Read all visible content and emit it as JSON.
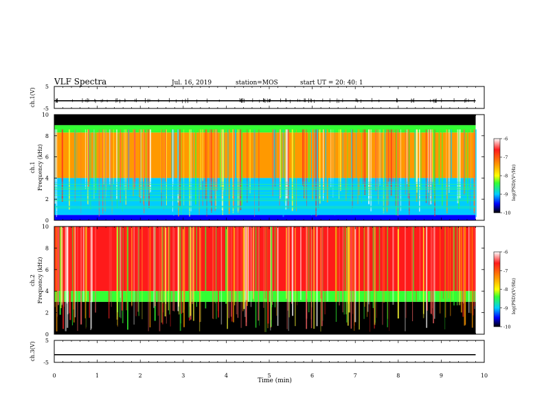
{
  "header": {
    "title": "VLF Spectra",
    "date": "Jul. 16, 2019",
    "station": "station=MOS",
    "start": "start UT =  20: 40: 1"
  },
  "colorbar": {
    "label": "log(PSD)(V²/Hz)",
    "ticks": [
      "-6",
      "-7",
      "-8",
      "-9",
      "-10"
    ],
    "colors": [
      "#ffffff",
      "#ff1a1a",
      "#ff9900",
      "#ffff00",
      "#33ff33",
      "#00ccff",
      "#0000ff",
      "#000000"
    ]
  },
  "chart_data": [
    {
      "type": "line",
      "ylabel": "ch.1(V)",
      "ylim": [
        -5,
        5
      ],
      "yticks": [
        "5",
        "-5"
      ],
      "xlim": [
        0,
        10
      ],
      "x": [
        0,
        9.8
      ],
      "values": [
        -1.5,
        -1.5
      ],
      "note_visible": "trace near -1.5 V with small spikes"
    },
    {
      "type": "heatmap",
      "ylabel": "ch.1\nFrequency (kHz)",
      "ylim": [
        0,
        10
      ],
      "yticks": [
        "10",
        "8",
        "6",
        "4",
        "2",
        "0"
      ],
      "xlim": [
        0,
        10
      ],
      "x_data_end": 9.8,
      "bands_khz": [
        {
          "from": 9.0,
          "to": 10.0,
          "log_psd": -10
        },
        {
          "from": 8.3,
          "to": 9.0,
          "log_psd": -8.5
        },
        {
          "from": 4.0,
          "to": 8.3,
          "log_psd": -7
        },
        {
          "from": 0.5,
          "to": 4.0,
          "log_psd": -8.6
        },
        {
          "from": 0.0,
          "to": 0.5,
          "log_psd": -9.5
        }
      ]
    },
    {
      "type": "heatmap",
      "ylabel": "ch.2\nFrequency (kHz)",
      "ylim": [
        0,
        10
      ],
      "yticks": [
        "10",
        "8",
        "6",
        "4",
        "2",
        "0"
      ],
      "xlim": [
        0,
        10
      ],
      "x_data_end": 9.8,
      "bands_khz": [
        {
          "from": 4.0,
          "to": 10.0,
          "log_psd": -6.8
        },
        {
          "from": 3.0,
          "to": 4.0,
          "log_psd": -8.3
        },
        {
          "from": 0.0,
          "to": 3.0,
          "log_psd": -10
        }
      ]
    },
    {
      "type": "line",
      "ylabel": "ch.3(V)",
      "ylim": [
        -5,
        5
      ],
      "yticks": [
        "5",
        "-5"
      ],
      "xlim": [
        0,
        10
      ],
      "x": [
        0,
        9.8
      ],
      "values": [
        -1.5,
        -1.5
      ]
    }
  ],
  "x_axis": {
    "label": "Time (min)",
    "ticks": [
      "0",
      "1",
      "2",
      "3",
      "4",
      "5",
      "6",
      "7",
      "8",
      "9",
      "10"
    ]
  }
}
